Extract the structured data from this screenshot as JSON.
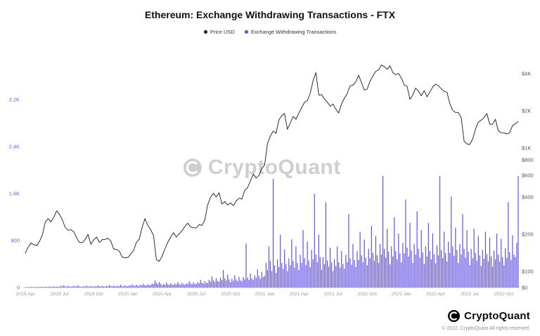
{
  "title": "Ethereum: Exchange Withdrawing Transactions - FTX",
  "legend": [
    {
      "label": "Price USD",
      "color": "#16152c"
    },
    {
      "label": "Exchange Withdrawing Transactions",
      "color": "#5b4ae6"
    }
  ],
  "watermark": {
    "text": "CryptoQuant"
  },
  "footer": {
    "brand": "CryptoQuant",
    "copyright": "© 2022. CryptoQuant All rights reserved."
  },
  "chart_data": {
    "type": "mixed",
    "x_range": [
      "2019-04",
      "2022-11"
    ],
    "x_total_months": 43.25,
    "x_ticks": [
      {
        "label": "2019 Apr",
        "m": 0
      },
      {
        "label": "2019 Jul",
        "m": 3
      },
      {
        "label": "2019 Oct",
        "m": 6
      },
      {
        "label": "2020 Jan",
        "m": 9
      },
      {
        "label": "2020 Apr",
        "m": 12
      },
      {
        "label": "2020 Jul",
        "m": 15
      },
      {
        "label": "2020 Oct",
        "m": 18
      },
      {
        "label": "2021 Jan",
        "m": 21
      },
      {
        "label": "2021 Apr",
        "m": 24
      },
      {
        "label": "2021 Jul",
        "m": 27
      },
      {
        "label": "2021 Oct",
        "m": 30
      },
      {
        "label": "2022 Jan",
        "m": 33
      },
      {
        "label": "2022 Apr",
        "m": 36
      },
      {
        "label": "2022 Jul",
        "m": 39
      },
      {
        "label": "2022 Oct",
        "m": 42
      }
    ],
    "left_axis": {
      "label": "Exchange Withdrawing Transactions",
      "range": [
        0,
        4000
      ],
      "ticks": [
        {
          "label": "0",
          "value": 0
        },
        {
          "label": "800",
          "value": 800
        },
        {
          "label": "1.6K",
          "value": 1600
        },
        {
          "label": "2.4K",
          "value": 2400
        },
        {
          "label": "3.2K",
          "value": 3200
        }
      ]
    },
    "right_axis": {
      "label": "Price USD",
      "scale": "log2",
      "ticks": [
        {
          "label": "$0",
          "value": 0
        },
        {
          "label": "$100",
          "value": 100
        },
        {
          "label": "$200",
          "value": 200
        },
        {
          "label": "$400",
          "value": 400
        },
        {
          "label": "$600",
          "value": 600
        },
        {
          "label": "$800",
          "value": 800
        },
        {
          "label": "$1K",
          "value": 1000
        },
        {
          "label": "$2K",
          "value": 2000
        },
        {
          "label": "$4K",
          "value": 4000
        }
      ]
    },
    "series": [
      {
        "name": "Price USD",
        "type": "line",
        "axis": "right",
        "color": "#16152c",
        "values": [
          141,
          158,
          170,
          165,
          162,
          176,
          198,
          252,
          268,
          252,
          275,
          310,
          290,
          262,
          228,
          215,
          218,
          210,
          188,
          172,
          171,
          182,
          200,
          166,
          180,
          190,
          172,
          181,
          182,
          186,
          176,
          152,
          151,
          146,
          131,
          129,
          130,
          138,
          148,
          172,
          183,
          228,
          268,
          236,
          218,
          196,
          125,
          121,
          133,
          152,
          172,
          190,
          206,
          190,
          202,
          214,
          231,
          246,
          230,
          226,
          225,
          240,
          236,
          262,
          346,
          398,
          430,
          402,
          434,
          352,
          368,
          346,
          359,
          342,
          372,
          392,
          386,
          452,
          478,
          540,
          615,
          572,
          598,
          682,
          730,
          1090,
          1250,
          1372,
          1314,
          1680,
          1830,
          1900,
          1418,
          1590,
          1800,
          1710,
          1918,
          2120,
          2350,
          2420,
          2772,
          3520,
          4080,
          2680,
          2706,
          2480,
          2350,
          2180,
          2274,
          2060,
          1920,
          2280,
          2530,
          2760,
          3180,
          3230,
          3430,
          3880,
          3380,
          2950,
          3000,
          3480,
          3820,
          4180,
          4288,
          4700,
          4560,
          4340,
          4631,
          4080,
          3920,
          4020,
          3683,
          3240,
          3160,
          2480,
          2688,
          3060,
          2880,
          2650,
          2920,
          2600,
          2840,
          3120,
          3282,
          3200,
          3020,
          2880,
          2827,
          2280,
          2020,
          1940,
          1942,
          1760,
          1140,
          1080,
          1067,
          1180,
          1420,
          1620,
          1681,
          1760,
          1900,
          1560,
          1554,
          1710,
          1380,
          1330,
          1328,
          1300,
          1330,
          1520,
          1572,
          1640
        ]
      },
      {
        "name": "Exchange Withdrawing Transactions",
        "type": "bar",
        "axis": "left",
        "color": "#5b4ae6",
        "values": [
          8,
          12,
          6,
          10,
          15,
          9,
          7,
          11,
          10,
          14,
          8,
          18,
          12,
          9,
          16,
          11,
          12,
          20,
          15,
          10,
          25,
          14,
          18,
          12,
          15,
          30,
          18,
          40,
          22,
          16,
          28,
          19,
          14,
          22,
          30,
          17,
          25,
          40,
          20,
          15,
          16,
          24,
          18,
          35,
          20,
          15,
          26,
          19,
          18,
          26,
          20,
          38,
          24,
          17,
          30,
          21,
          20,
          28,
          22,
          45,
          26,
          19,
          34,
          23,
          22,
          30,
          24,
          50,
          28,
          21,
          38,
          25,
          25,
          40,
          30,
          55,
          35,
          28,
          48,
          32,
          30,
          50,
          38,
          65,
          42,
          34,
          58,
          40,
          45,
          70,
          55,
          120,
          80,
          60,
          95,
          65,
          40,
          60,
          48,
          85,
          55,
          45,
          75,
          52,
          45,
          68,
          54,
          95,
          62,
          50,
          82,
          58,
          50,
          75,
          60,
          105,
          70,
          56,
          90,
          64,
          60,
          90,
          72,
          130,
          85,
          68,
          110,
          78,
          80,
          130,
          100,
          190,
          120,
          95,
          160,
          110,
          100,
          170,
          130,
          300,
          160,
          120,
          220,
          140,
          90,
          150,
          115,
          210,
          140,
          105,
          185,
          125,
          110,
          180,
          140,
          750,
          170,
          130,
          240,
          155,
          130,
          210,
          160,
          310,
          195,
          150,
          270,
          180,
          200,
          420,
          300,
          700,
          450,
          280,
          1850,
          380,
          250,
          480,
          350,
          900,
          420,
          320,
          650,
          400,
          280,
          500,
          380,
          820,
          450,
          340,
          700,
          420,
          300,
          560,
          420,
          980,
          500,
          380,
          780,
          460,
          350,
          640,
          480,
          1600,
          560,
          430,
          900,
          520,
          300,
          520,
          400,
          1450,
          460,
          360,
          680,
          430,
          280,
          480,
          370,
          700,
          430,
          340,
          620,
          400,
          320,
          560,
          430,
          1250,
          500,
          390,
          740,
          470,
          350,
          620,
          470,
          950,
          550,
          430,
          820,
          510,
          380,
          660,
          500,
          1050,
          590,
          460,
          880,
          550,
          420,
          740,
          560,
          1900,
          660,
          510,
          1000,
          610,
          400,
          700,
          530,
          1200,
          620,
          480,
          920,
          580,
          430,
          760,
          580,
          1500,
          680,
          530,
          1100,
          630,
          420,
          740,
          560,
          1300,
          660,
          510,
          980,
          600,
          400,
          700,
          530,
          1100,
          620,
          480,
          920,
          570,
          410,
          720,
          550,
          1900,
          640,
          500,
          950,
          590,
          440,
          780,
          590,
          1550,
          700,
          540,
          1020,
          640,
          420,
          740,
          560,
          1250,
          660,
          510,
          980,
          610,
          380,
          660,
          500,
          1000,
          590,
          460,
          880,
          550,
          370,
          640,
          490,
          950,
          570,
          450,
          850,
          530,
          360,
          630,
          480,
          920,
          560,
          440,
          830,
          520,
          380,
          670,
          510,
          1450,
          600,
          470,
          890,
          560,
          520,
          760,
          1900
        ]
      }
    ]
  }
}
